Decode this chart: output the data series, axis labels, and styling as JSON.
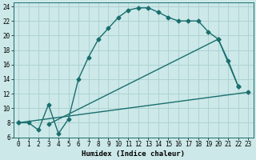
{
  "xlabel": "Humidex (Indice chaleur)",
  "bg_color": "#cce8e8",
  "grid_color": "#aacfcf",
  "line_color": "#1a6e6e",
  "xlim": [
    -0.5,
    23.5
  ],
  "ylim": [
    6,
    24.5
  ],
  "xticks": [
    0,
    1,
    2,
    3,
    4,
    5,
    6,
    7,
    8,
    9,
    10,
    11,
    12,
    13,
    14,
    15,
    16,
    17,
    18,
    19,
    20,
    21,
    22,
    23
  ],
  "yticks": [
    6,
    8,
    10,
    12,
    14,
    16,
    18,
    20,
    22,
    24
  ],
  "line1_x": [
    0,
    1,
    2,
    3,
    4,
    5,
    6,
    7,
    8,
    9,
    10,
    11,
    12,
    13,
    14,
    15,
    16,
    17,
    18,
    19,
    20,
    21,
    22
  ],
  "line1_y": [
    8,
    8,
    7,
    10.5,
    6.5,
    8.5,
    14,
    17,
    19.5,
    21,
    22.5,
    23.5,
    23.8,
    23.8,
    23.2,
    22.5,
    22,
    22,
    22,
    20.5,
    19.5,
    16.5,
    13.0
  ],
  "line2_x": [
    0,
    23
  ],
  "line2_y": [
    8,
    12.2
  ],
  "line3_x": [
    3,
    20,
    22
  ],
  "line3_y": [
    7.8,
    19.5,
    13.0
  ],
  "markersize": 2.5,
  "linewidth": 1.0,
  "tick_fontsize": 5.5,
  "xlabel_fontsize": 6.5
}
